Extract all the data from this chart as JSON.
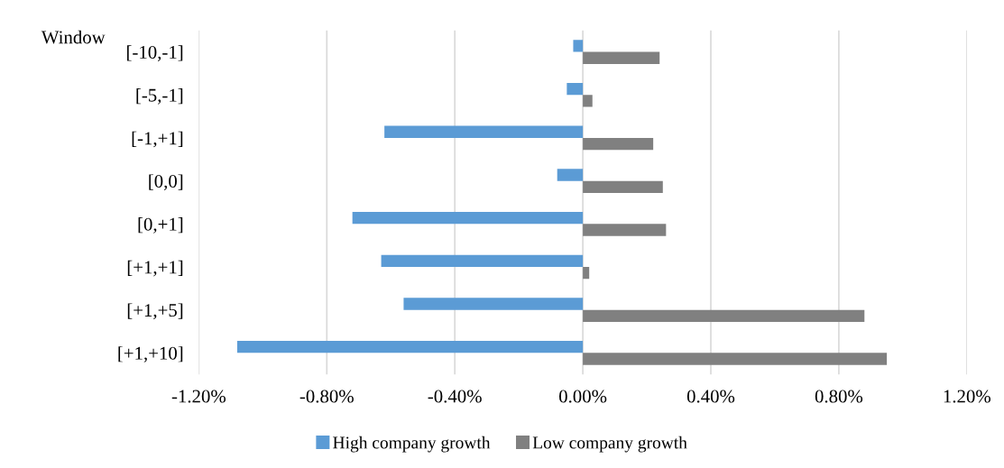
{
  "chart_data": {
    "type": "bar",
    "orientation": "horizontal",
    "ylabel": "Window",
    "categories": [
      "[-10,-1]",
      "[-5,-1]",
      "[-1,+1]",
      "[0,0]",
      "[0,+1]",
      "[+1,+1]",
      "[+1,+5]",
      "[+1,+10]"
    ],
    "series": [
      {
        "name": "High company growth",
        "color": "#5b9bd5",
        "values": [
          -0.03,
          -0.05,
          -0.62,
          -0.08,
          -0.72,
          -0.63,
          -0.56,
          -1.08
        ]
      },
      {
        "name": "Low company growth",
        "color": "#808080",
        "values": [
          0.24,
          0.03,
          0.22,
          0.25,
          0.26,
          0.02,
          0.88,
          0.95
        ]
      }
    ],
    "xlim": [
      -1.2,
      1.2
    ],
    "xticks": [
      {
        "value": -1.2,
        "label": "-1.20%"
      },
      {
        "value": -0.8,
        "label": "-0.80%"
      },
      {
        "value": -0.4,
        "label": "-0.40%"
      },
      {
        "value": 0,
        "label": "0.00%"
      },
      {
        "value": 0.4,
        "label": "0.40%"
      },
      {
        "value": 0.8,
        "label": "0.80%"
      },
      {
        "value": 1.2,
        "label": "1.20%"
      }
    ],
    "grid": "x",
    "legend": "bottom"
  }
}
